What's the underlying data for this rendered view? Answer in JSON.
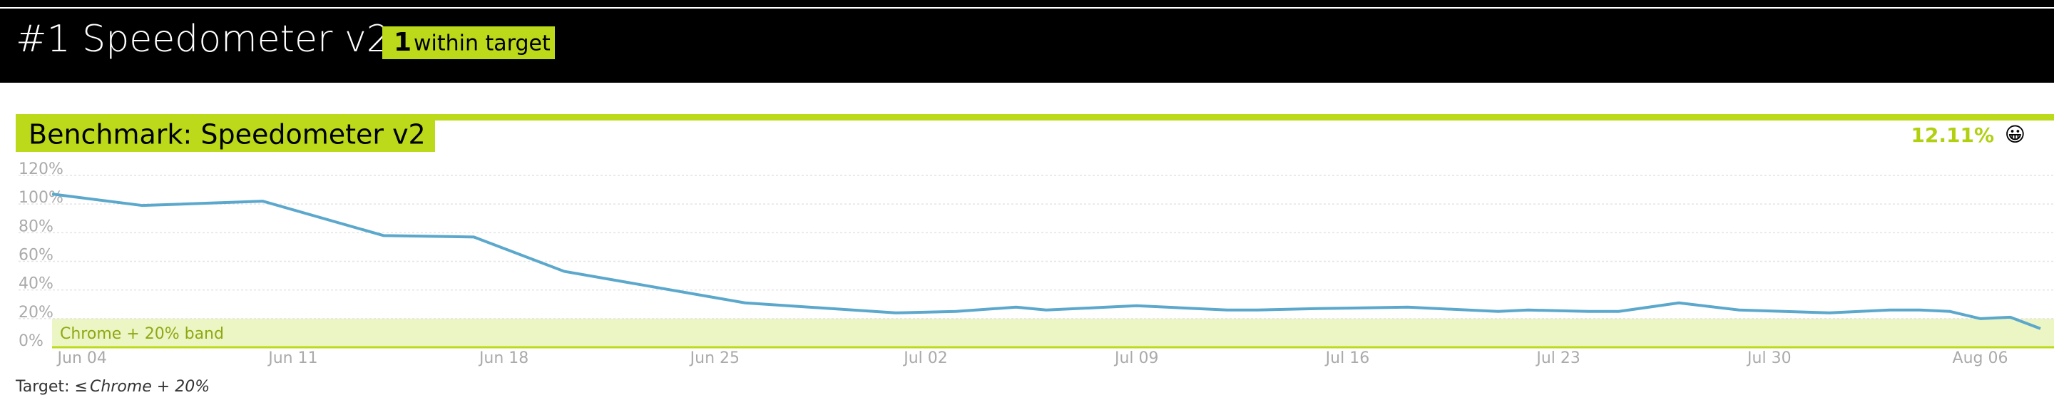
{
  "header": {
    "title": "#1 Speedometer v2",
    "badge_count": "1",
    "badge_text": "within target"
  },
  "section": {
    "title": "Benchmark: Speedometer v2",
    "score": "12.11%",
    "emoji": "😀"
  },
  "footer": {
    "prefix": "Target: ≤",
    "target": "Chrome + 20%"
  },
  "chart_data": {
    "type": "line",
    "x": [
      "Jun 03",
      "Jun 06",
      "Jun 10",
      "Jun 14",
      "Jun 17",
      "Jun 20",
      "Jun 26",
      "Jul 01",
      "Jul 03",
      "Jul 05",
      "Jul 06",
      "Jul 08",
      "Jul 09",
      "Jul 12",
      "Jul 13",
      "Jul 15",
      "Jul 18",
      "Jul 21",
      "Jul 22",
      "Jul 24",
      "Jul 25",
      "Jul 27",
      "Jul 29",
      "Aug 01",
      "Aug 03",
      "Aug 04",
      "Aug 05",
      "Aug 06",
      "Aug 07",
      "Aug 08"
    ],
    "series": [
      {
        "name": "Speedometer v2",
        "color": "#5ba8cc",
        "values": [
          107,
          99,
          102,
          78,
          77,
          53,
          31,
          24,
          25,
          28,
          26,
          28,
          29,
          26,
          26,
          27,
          28,
          25,
          26,
          25,
          25,
          31,
          26,
          24,
          26,
          26,
          25,
          20,
          21,
          13
        ]
      }
    ],
    "xlim": [
      "Jun 03",
      "Aug 08"
    ],
    "xticks": [
      "Jun 04",
      "Jun 11",
      "Jun 18",
      "Jun 25",
      "Jul 02",
      "Jul 09",
      "Jul 16",
      "Jul 23",
      "Jul 30",
      "Aug 06"
    ],
    "ylim": [
      0,
      120
    ],
    "yticks": [
      {
        "value": 0,
        "label": "0%"
      },
      {
        "value": 20,
        "label": "20%"
      },
      {
        "value": 40,
        "label": "40%"
      },
      {
        "value": 60,
        "label": "60%"
      },
      {
        "value": 80,
        "label": "80%"
      },
      {
        "value": 100,
        "label": "100%"
      },
      {
        "value": 120,
        "label": "120%"
      }
    ],
    "band": {
      "range": [
        0,
        20
      ],
      "label": "Chrome + 20% band",
      "color": "#ecf5c4"
    },
    "grid": true
  }
}
